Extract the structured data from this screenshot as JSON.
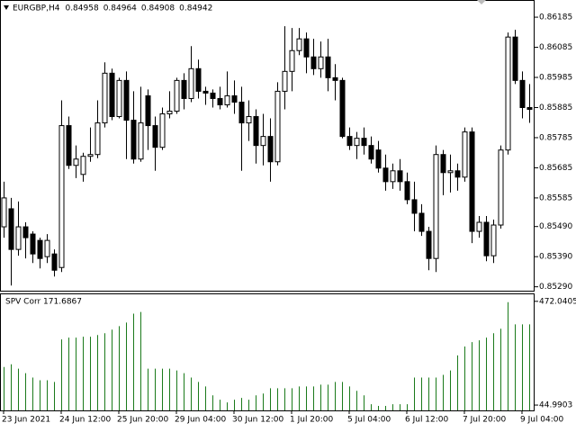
{
  "chart_data": [
    {
      "type": "candlestick",
      "title": "EURGBP,H4",
      "header_values": [
        0.84958,
        0.84964,
        0.84908,
        0.84942
      ],
      "categories": [
        "23 Jun 2021",
        null,
        null,
        null,
        null,
        null,
        null,
        null,
        "24 Jun 12:00",
        null,
        null,
        null,
        null,
        null,
        null,
        null,
        "25 Jun 20:00",
        null,
        null,
        null,
        null,
        null,
        null,
        null,
        "29 Jun 04:00",
        null,
        null,
        null,
        null,
        null,
        null,
        null,
        "30 Jun 12:00",
        null,
        null,
        null,
        null,
        null,
        null,
        null,
        "1 Jul 20:00",
        null,
        null,
        null,
        null,
        null,
        null,
        null,
        "5 Jul 04:00",
        null,
        null,
        null,
        null,
        null,
        null,
        null,
        "6 Jul 12:00",
        null,
        null,
        null,
        null,
        null,
        null,
        null,
        "7 Jul 20:00",
        null,
        null,
        null,
        null,
        null,
        null,
        null,
        "9 Jul 04:00",
        null
      ],
      "open": [
        0.85489,
        0.85549,
        0.85414,
        0.85489,
        0.85465,
        0.85444,
        0.8539,
        0.85399,
        0.85354,
        0.85825,
        0.85693,
        0.85663,
        0.85723,
        0.85729,
        0.85834,
        0.85999,
        0.85855,
        0.85975,
        0.85843,
        0.85714,
        0.85924,
        0.85825,
        0.85753,
        0.85864,
        0.85873,
        0.85975,
        0.85915,
        0.86014,
        0.85939,
        0.85933,
        0.85915,
        0.85894,
        0.85924,
        0.85903,
        0.85834,
        0.85855,
        0.85759,
        0.85789,
        0.85705,
        0.85939,
        0.86005,
        0.86074,
        0.86113,
        0.86053,
        0.86014,
        0.86053,
        0.85984,
        0.85975,
        0.85789,
        0.85759,
        0.85783,
        0.85759,
        0.85744,
        0.85684,
        0.85639,
        0.85675,
        0.85639,
        0.85579,
        0.85534,
        0.85474,
        0.85384,
        0.85729,
        0.85669,
        0.85675,
        0.85654,
        0.85804,
        0.85474,
        0.85504,
        0.85393,
        0.85495,
        0.85744,
        0.86119,
        0.85975,
        0.85885
      ],
      "high": [
        0.85639,
        0.85585,
        0.85573,
        0.85504,
        0.85474,
        0.85453,
        0.85465,
        0.85414,
        0.85909,
        0.85855,
        0.85759,
        0.85735,
        0.85819,
        0.85909,
        0.86035,
        0.86014,
        0.85984,
        0.86005,
        0.85939,
        0.85954,
        0.85945,
        0.85855,
        0.85885,
        0.85939,
        0.85984,
        0.85999,
        0.86089,
        0.86044,
        0.85954,
        0.85945,
        0.85954,
        0.86005,
        0.85975,
        0.85954,
        0.85909,
        0.85879,
        0.85864,
        0.85849,
        0.85969,
        0.86155,
        0.86149,
        0.86149,
        0.86134,
        0.86113,
        0.86104,
        0.86113,
        0.86029,
        0.85984,
        0.85819,
        0.85804,
        0.85819,
        0.85789,
        0.85774,
        0.85729,
        0.85699,
        0.85714,
        0.85669,
        0.85639,
        0.85564,
        0.85489,
        0.85759,
        0.85744,
        0.85729,
        0.85699,
        0.85819,
        0.85819,
        0.85525,
        0.85525,
        0.85513,
        0.85759,
        0.86134,
        0.86143,
        0.86005,
        0.85963
      ],
      "low": [
        0.85453,
        0.85294,
        0.85393,
        0.85384,
        0.85369,
        0.85351,
        0.85369,
        0.85324,
        0.85339,
        0.85681,
        0.85651,
        0.85639,
        0.85705,
        0.85717,
        0.85819,
        0.85843,
        0.85849,
        0.85714,
        0.85699,
        0.85705,
        0.85744,
        0.85675,
        0.85744,
        0.85849,
        0.85864,
        0.85879,
        0.85903,
        0.85915,
        0.85894,
        0.85885,
        0.85879,
        0.85885,
        0.85864,
        0.85675,
        0.85774,
        0.85699,
        0.85693,
        0.85639,
        0.85693,
        0.85879,
        0.85939,
        0.86059,
        0.85999,
        0.85993,
        0.85984,
        0.85939,
        0.85909,
        0.85783,
        0.85744,
        0.85714,
        0.85729,
        0.85699,
        0.85669,
        0.85609,
        0.85615,
        0.85609,
        0.85564,
        0.85474,
        0.85459,
        0.85345,
        0.85339,
        0.85594,
        0.85603,
        0.85609,
        0.85639,
        0.85435,
        0.85453,
        0.85375,
        0.85369,
        0.85483,
        0.85729,
        0.85963,
        0.85849,
        0.85834
      ],
      "close": [
        0.85585,
        0.85414,
        0.85489,
        0.85453,
        0.85399,
        0.85384,
        0.85444,
        0.85345,
        0.85825,
        0.85693,
        0.85714,
        0.85723,
        0.85729,
        0.85834,
        0.85999,
        0.85855,
        0.85975,
        0.85843,
        0.85714,
        0.85834,
        0.85825,
        0.85753,
        0.85864,
        0.85873,
        0.85975,
        0.85915,
        0.86014,
        0.85939,
        0.85933,
        0.85915,
        0.85894,
        0.85924,
        0.85903,
        0.85834,
        0.85855,
        0.85759,
        0.85789,
        0.85705,
        0.85939,
        0.86005,
        0.86074,
        0.86113,
        0.86053,
        0.86014,
        0.86053,
        0.85984,
        0.85975,
        0.85789,
        0.85759,
        0.85783,
        0.85759,
        0.85714,
        0.85684,
        0.85639,
        0.85675,
        0.85639,
        0.85579,
        0.85534,
        0.85474,
        0.85384,
        0.85729,
        0.85669,
        0.85675,
        0.85654,
        0.85804,
        0.85474,
        0.85504,
        0.85393,
        0.85495,
        0.85744,
        0.86119,
        0.85975,
        0.85885,
        0.85879
      ],
      "up_color": "#ffffff",
      "down_color": "#000000",
      "ylim": [
        0.85277,
        0.86239
      ],
      "yticks": [
        0.86185,
        0.86085,
        0.85985,
        0.85885,
        0.85785,
        0.85685,
        0.85585,
        {
          "value": 0.8549,
          "label": "0.85490"
        },
        {
          "value": 0.8539,
          "label": "0.85390"
        },
        {
          "value": 0.8529,
          "label": "0.85290"
        }
      ]
    },
    {
      "type": "bar",
      "title": "SPV Corr 171.6867",
      "color": "#1a7a1a",
      "values": [
        202.0,
        213.0,
        194.7,
        176.5,
        158.2,
        147.3,
        147.3,
        140.0,
        315.2,
        322.6,
        322.6,
        326.2,
        326.2,
        333.5,
        340.8,
        355.4,
        370.0,
        384.6,
        421.2,
        428.5,
        194.7,
        194.7,
        194.7,
        194.7,
        187.4,
        176.5,
        158.2,
        140.0,
        121.7,
        85.2,
        66.9,
        56.0,
        66.9,
        74.2,
        66.9,
        85.2,
        92.5,
        114.4,
        114.4,
        114.4,
        114.4,
        121.7,
        121.7,
        121.7,
        129.0,
        129.0,
        140.0,
        140.0,
        121.7,
        103.5,
        85.2,
        48.7,
        41.3,
        41.3,
        48.7,
        48.7,
        48.7,
        158.2,
        158.2,
        158.2,
        158.2,
        169.2,
        187.4,
        249.5,
        286.0,
        304.3,
        311.6,
        322.6,
        340.8,
        359.1,
        468.6,
        377.3,
        377.3,
        377.3
      ],
      "ylim": [
        23,
        501
      ],
      "yticks": [
        472.0405,
        44.9903
      ]
    }
  ]
}
